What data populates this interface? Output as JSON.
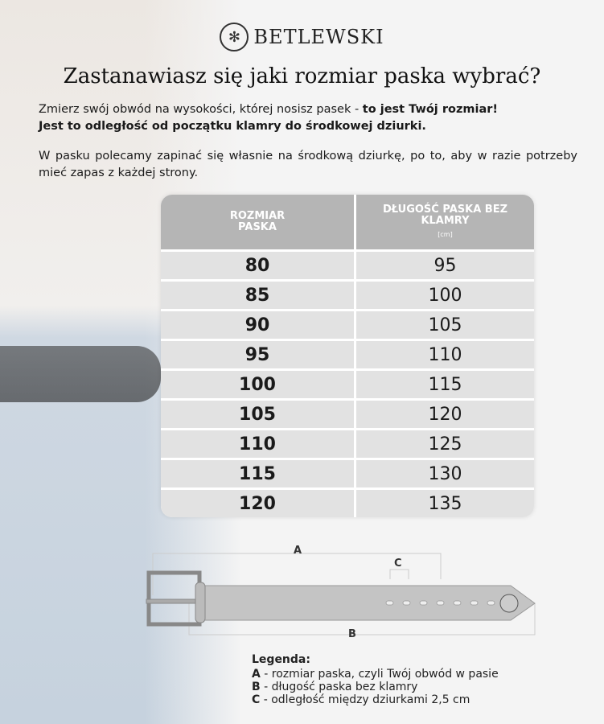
{
  "brand": "BETLEWSKI",
  "title": "Zastanawiasz się jaki rozmiar paska wybrać?",
  "intro": {
    "text": "Zmierz swój obwód na wysokości, której nosisz pasek - ",
    "bold1": "to jest Twój rozmiar!",
    "bold2": "Jest to odległość od początku klamry do środkowej dziurki."
  },
  "recommendation": "W pasku polecamy zapinać się własnie na środkową dziurkę, po to, aby w razie potrzeby mieć zapas z każdej strony.",
  "table": {
    "headers": [
      "ROZMIAR PASKA",
      "DŁUGOŚĆ PASKA BEZ KLAMRY"
    ],
    "unit": "[cm]",
    "rows": [
      [
        "80",
        "95"
      ],
      [
        "85",
        "100"
      ],
      [
        "90",
        "105"
      ],
      [
        "95",
        "110"
      ],
      [
        "100",
        "115"
      ],
      [
        "105",
        "120"
      ],
      [
        "110",
        "125"
      ],
      [
        "115",
        "130"
      ],
      [
        "120",
        "135"
      ]
    ]
  },
  "diagram": {
    "label_a": "A",
    "label_b": "B",
    "label_c": "C"
  },
  "legend": {
    "title": "Legenda:",
    "items": [
      {
        "key": "A",
        "text": " - rozmiar paska, czyli Twój obwód w pasie"
      },
      {
        "key": "B",
        "text": " - długość paska bez klamry"
      },
      {
        "key": "C",
        "text": " - odległość między dziurkami 2,5 cm"
      }
    ]
  }
}
